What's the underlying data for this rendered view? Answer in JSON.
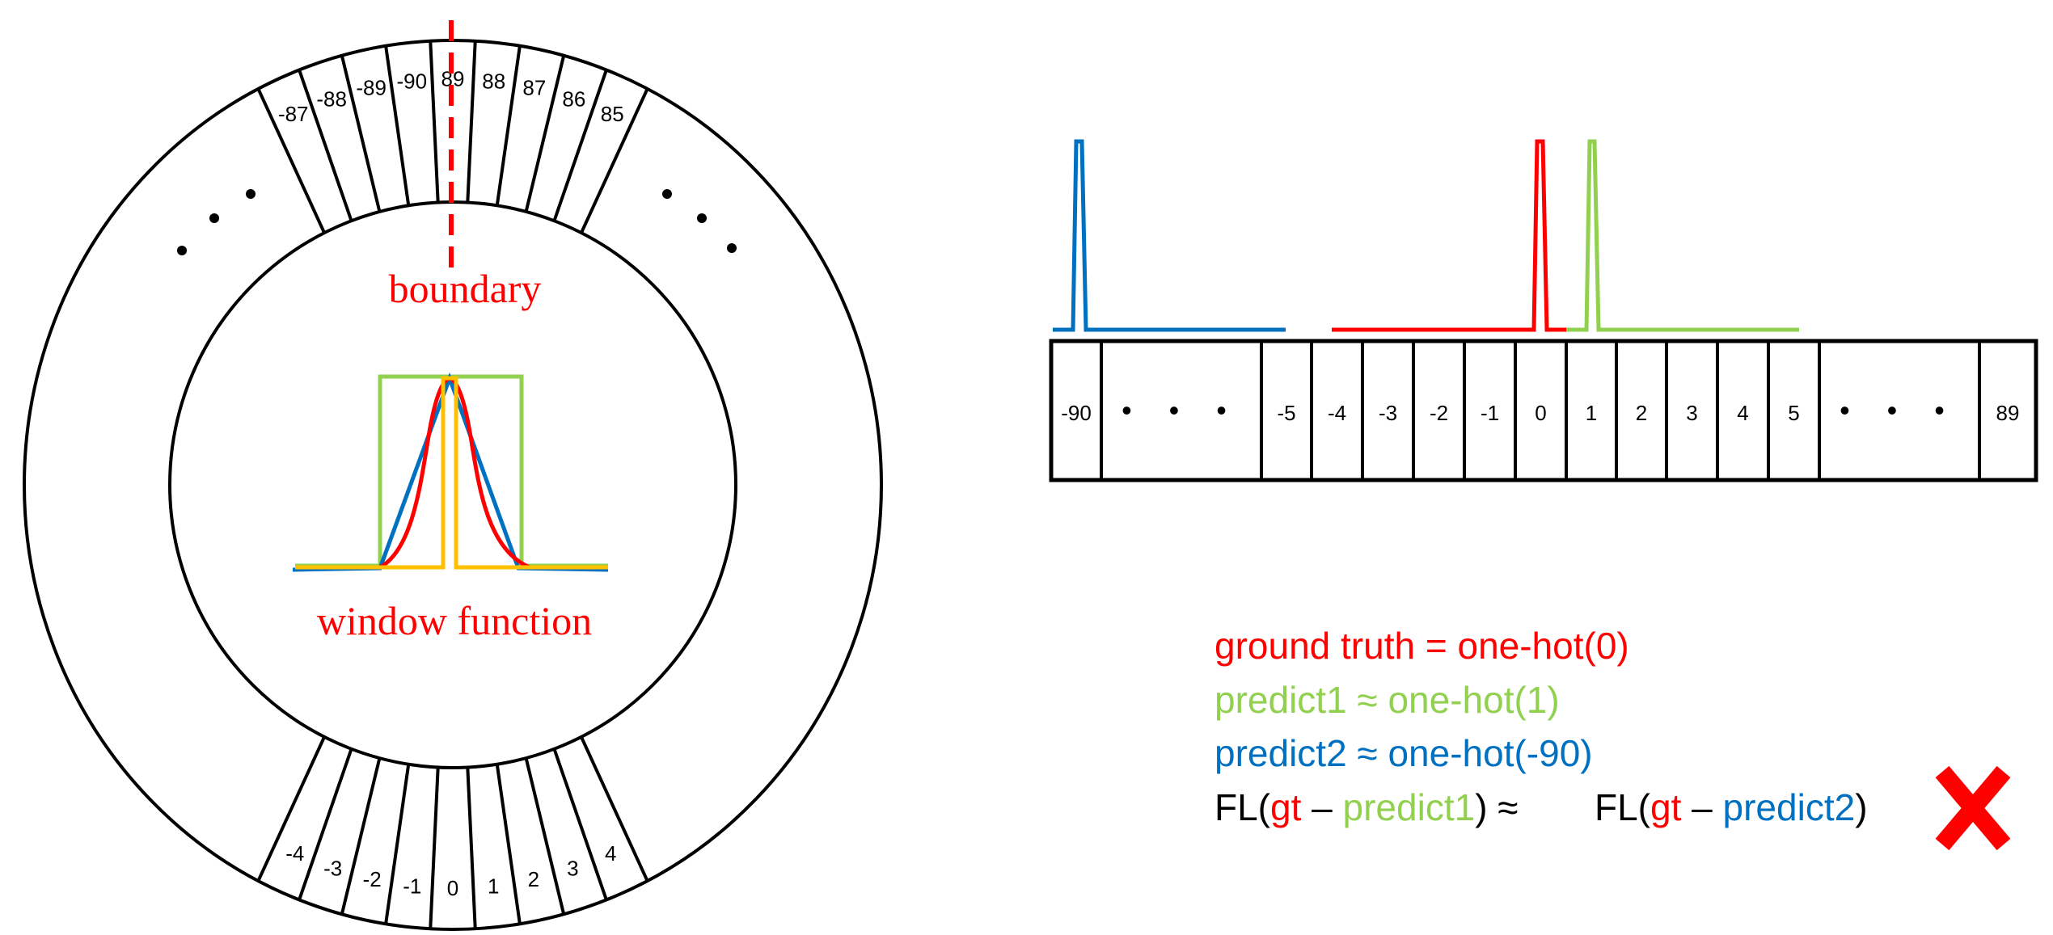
{
  "ring": {
    "top_labels": [
      "-87",
      "-88",
      "-89",
      "-90",
      "89",
      "88",
      "87",
      "86",
      "85"
    ],
    "bottom_labels": [
      "-4",
      "-3",
      "-2",
      "-1",
      "0",
      "1",
      "2",
      "3",
      "4"
    ],
    "boundary_label": "boundary",
    "window_label": "window function"
  },
  "strip": {
    "cells": [
      "-90",
      "• • •",
      "-5",
      "-4",
      "-3",
      "-2",
      "-1",
      "0",
      "1",
      "2",
      "3",
      "4",
      "5",
      "• • •",
      "89"
    ]
  },
  "legend": {
    "ground_truth": "ground truth = one-hot(0)",
    "predict1": "predict1 ≈ one-hot(1)",
    "predict2": "predict2 ≈ one-hot(-90)",
    "eq_fl1": "FL(",
    "eq_gt1": "gt",
    "eq_dash1": " – ",
    "eq_p1": "predict1",
    "eq_close1": ") ≈",
    "eq_fl2": "FL(",
    "eq_gt2": "gt",
    "eq_dash2": " – ",
    "eq_p2": "predict2",
    "eq_close2": ")"
  },
  "colors": {
    "red": "#ff0000",
    "green": "#92d050",
    "blue": "#0070c0",
    "yellow": "#ffc000",
    "black": "#000000"
  },
  "icons": {
    "wrong": "cross-mark-icon"
  }
}
